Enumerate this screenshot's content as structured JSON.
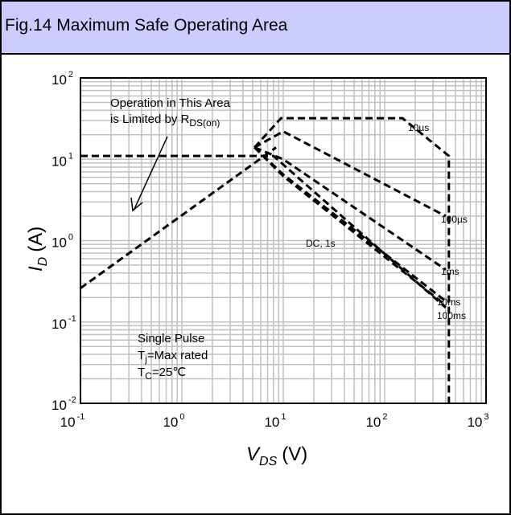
{
  "header": {
    "title": "Fig.14 Maximum Safe Operating Area"
  },
  "chart_data": {
    "type": "line",
    "title": "Fig.14 Maximum Safe Operating Area",
    "xscale": "log",
    "yscale": "log",
    "xlim": [
      0.1,
      1000
    ],
    "ylim": [
      0.01,
      100
    ],
    "grid": true,
    "xlabel": {
      "main": "V",
      "sub": "DS",
      "unit": "(V)"
    },
    "ylabel": {
      "main": "I",
      "sub": "D",
      "unit": "(A)"
    },
    "x_ticks": [
      {
        "base": "10",
        "exp": "-1"
      },
      {
        "base": "10",
        "exp": "0"
      },
      {
        "base": "10",
        "exp": "1"
      },
      {
        "base": "10",
        "exp": "2"
      },
      {
        "base": "10",
        "exp": "3"
      }
    ],
    "y_ticks": [
      {
        "base": "10",
        "exp": "-2"
      },
      {
        "base": "10",
        "exp": "-1"
      },
      {
        "base": "10",
        "exp": "0"
      },
      {
        "base": "10",
        "exp": "1"
      },
      {
        "base": "10",
        "exp": "2"
      }
    ],
    "series": [
      {
        "name": "RDS(on) limit",
        "x": [
          0.1,
          8.5
        ],
        "y": [
          0.26,
          14
        ]
      },
      {
        "name": "10µs",
        "x": [
          5.2,
          9.5,
          25,
          150,
          430,
          430
        ],
        "y": [
          14,
          32,
          32,
          32,
          11,
          0.01
        ]
      },
      {
        "name": "100µs",
        "x": [
          5.2,
          10,
          400
        ],
        "y": [
          14,
          22,
          2
        ]
      },
      {
        "name": "1ms",
        "x": [
          5.2,
          10,
          400
        ],
        "y": [
          14,
          10,
          0.44
        ]
      },
      {
        "name": "10ms",
        "x": [
          5.2,
          10,
          400
        ],
        "y": [
          14,
          6.5,
          0.18
        ]
      },
      {
        "name": "100ms",
        "x": [
          5.2,
          10,
          400
        ],
        "y": [
          14,
          6.2,
          0.16
        ]
      },
      {
        "name": "DC, 1s",
        "x": [
          0.1,
          8,
          400
        ],
        "y": [
          11,
          11,
          0.15
        ]
      }
    ],
    "series_labels": [
      "10µs",
      "100µs",
      "1ms",
      "10ms",
      "100ms",
      "DC, 1s"
    ],
    "annotations": {
      "rds_line1": "Operation in This Area",
      "rds_line2_prefix": "is Limited by R",
      "rds_line2_sub": "DS(on)",
      "cond_line1": "Single Pulse",
      "cond_line2_prefix": "T",
      "cond_line2_sub": "j",
      "cond_line2_suffix": "=Max rated",
      "cond_line3_prefix": "T",
      "cond_line3_sub": "C",
      "cond_line3_suffix": "=25℃"
    },
    "colors": {
      "grid": "#c0c0c0",
      "line": "#000000",
      "header_bg": "#ccccff"
    }
  }
}
